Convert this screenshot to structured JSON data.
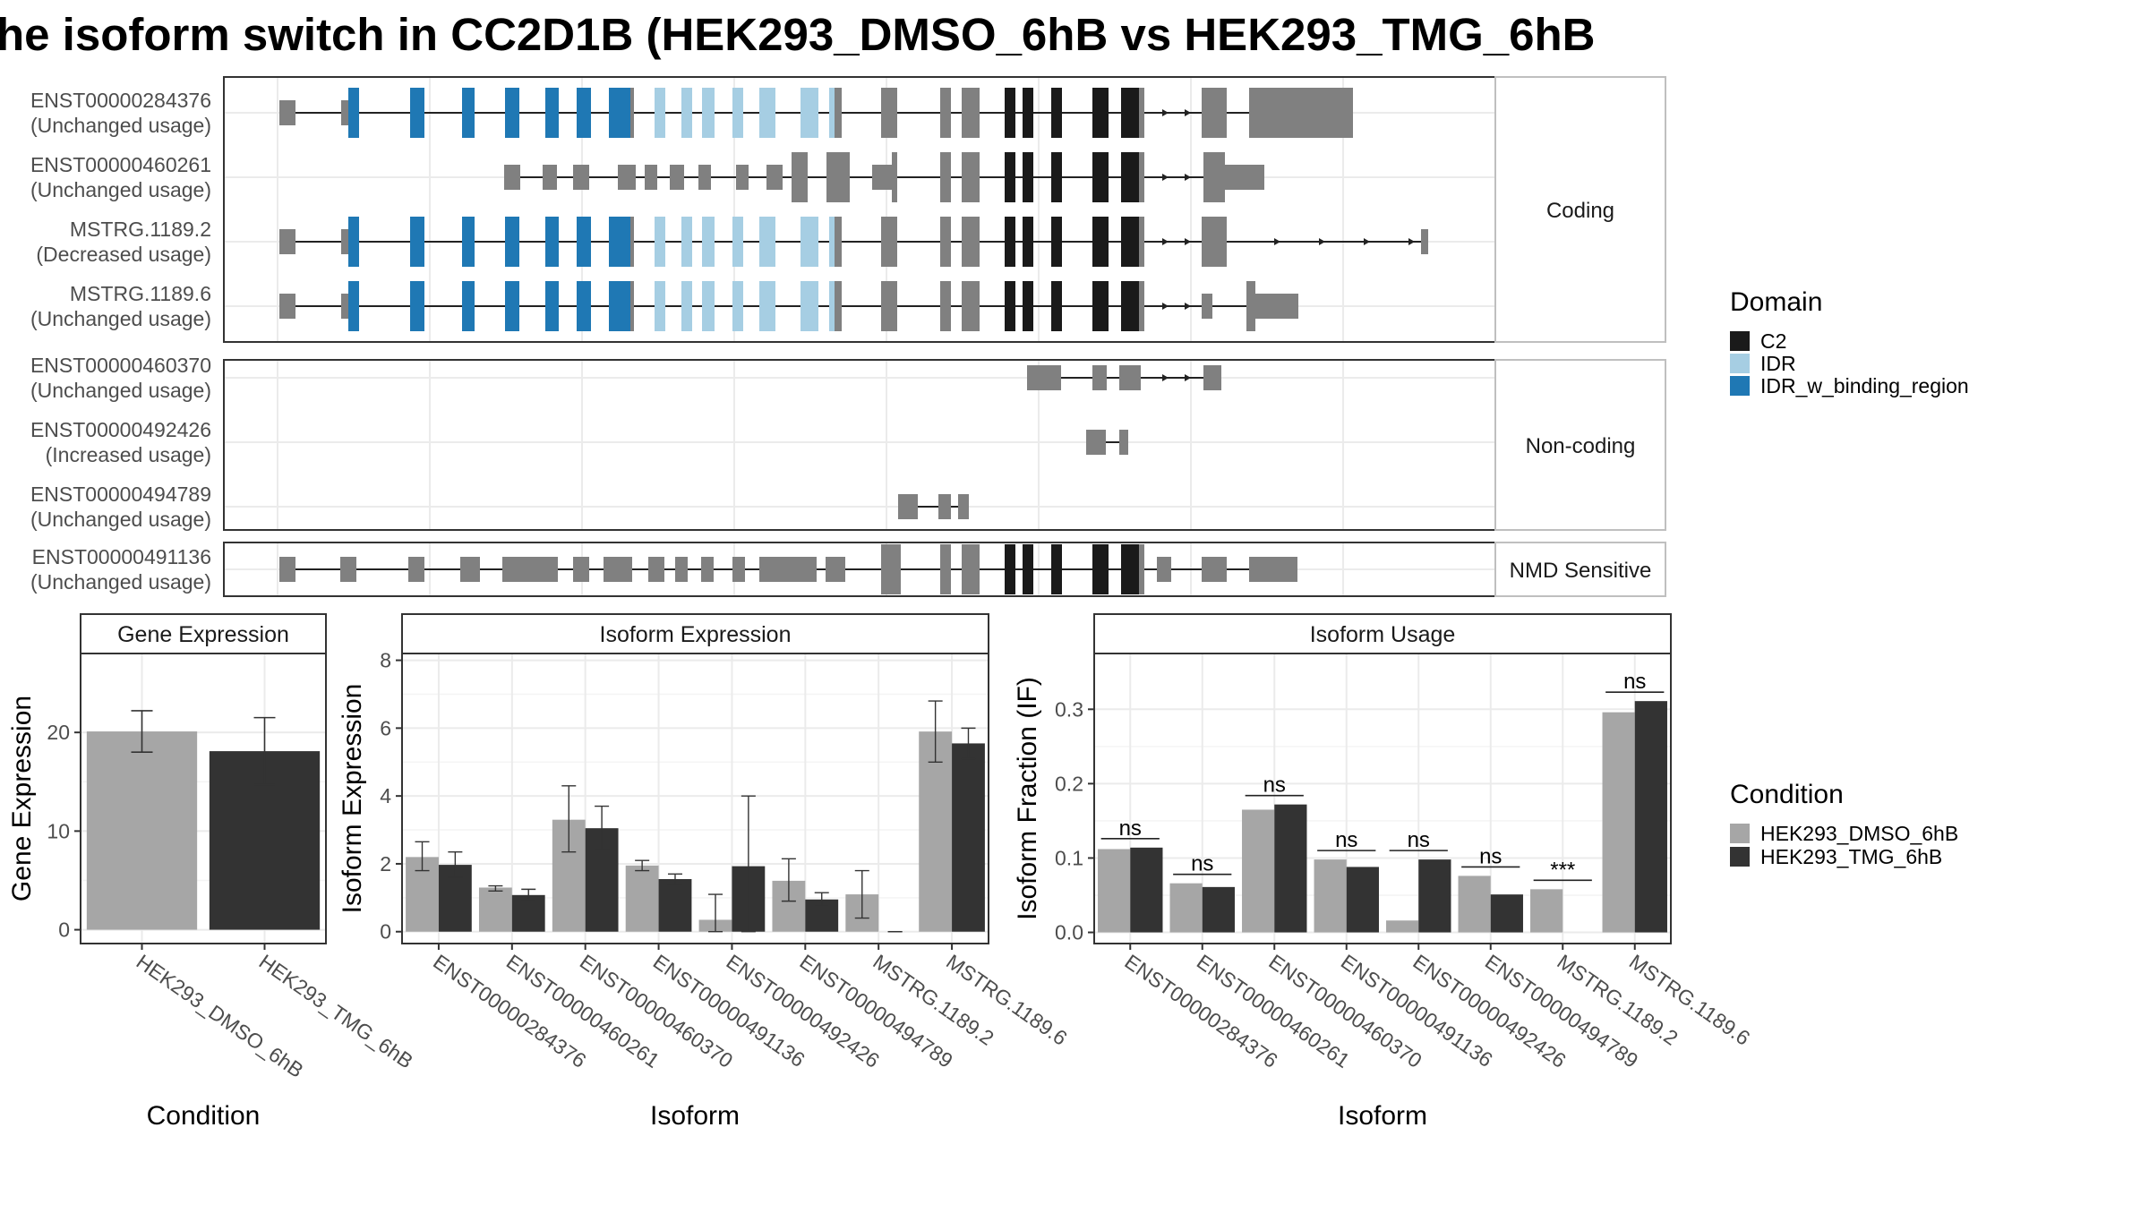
{
  "title": "he isoform switch in CC2D1B (HEK293_DMSO_6hB vs HEK293_TMG_6hB",
  "colors": {
    "exon_default": "#808080",
    "domain_c2": "#1a1a1a",
    "domain_idr": "#a6cee3",
    "domain_idr_binding": "#1f78b4",
    "condition_a": "#a6a6a6",
    "condition_b": "#333333",
    "grid": "#ebebeb",
    "panel_border": "#333333",
    "strip_border": "#bfbfbf"
  },
  "facets": [
    {
      "label": "Coding",
      "transcripts": [
        {
          "id": "ENST00000284376",
          "usage": "(Unchanged usage)"
        },
        {
          "id": "ENST00000460261",
          "usage": "(Unchanged usage)"
        },
        {
          "id": "MSTRG.1189.2",
          "usage": "(Decreased usage)"
        },
        {
          "id": "MSTRG.1189.6",
          "usage": "(Unchanged usage)"
        }
      ]
    },
    {
      "label": "Non-coding",
      "transcripts": [
        {
          "id": "ENST00000460370",
          "usage": "(Unchanged usage)"
        },
        {
          "id": "ENST00000492426",
          "usage": "(Increased usage)"
        },
        {
          "id": "ENST00000494789",
          "usage": "(Unchanged usage)"
        }
      ]
    },
    {
      "label": "NMD Sensitive",
      "transcripts": [
        {
          "id": "ENST00000491136",
          "usage": "(Unchanged usage)"
        }
      ]
    }
  ],
  "domain_legend": {
    "title": "Domain",
    "items": [
      {
        "label": "C2",
        "color": "#1a1a1a"
      },
      {
        "label": "IDR",
        "color": "#a6cee3"
      },
      {
        "label": "IDR_w_binding_region",
        "color": "#1f78b4"
      }
    ]
  },
  "condition_legend": {
    "title": "Condition",
    "items": [
      {
        "label": "HEK293_DMSO_6hB",
        "color": "#a6a6a6"
      },
      {
        "label": "HEK293_TMG_6hB",
        "color": "#333333"
      }
    ]
  },
  "chart_data": [
    {
      "type": "bar",
      "title": "Gene Expression",
      "xlabel": "Condition",
      "ylabel": "Gene Expression",
      "categories": [
        "HEK293_DMSO_6hB",
        "HEK293_TMG_6hB"
      ],
      "values": [
        20.1,
        18.1
      ],
      "err_low": [
        18.0,
        14.7
      ],
      "err_high": [
        22.2,
        21.5
      ],
      "ylim": [
        -1.4,
        28
      ],
      "yticks": [
        0,
        10,
        20
      ],
      "grid": true
    },
    {
      "type": "bar",
      "title": "Isoform Expression",
      "xlabel": "Isoform",
      "ylabel": "Isoform Expression",
      "categories": [
        "ENST00000284376",
        "ENST00000460261",
        "ENST00000460370",
        "ENST00000491136",
        "ENST00000492426",
        "ENST00000494789",
        "MSTRG.1189.2",
        "MSTRG.1189.6"
      ],
      "series": [
        {
          "name": "HEK293_DMSO_6hB",
          "values": [
            2.2,
            1.3,
            3.3,
            1.95,
            0.35,
            1.5,
            1.1,
            5.9
          ],
          "err_low": [
            1.8,
            1.2,
            2.35,
            1.8,
            0,
            0.9,
            0.4,
            5.0
          ],
          "err_high": [
            2.65,
            1.35,
            4.3,
            2.1,
            1.1,
            2.15,
            1.8,
            6.8
          ]
        },
        {
          "name": "HEK293_TMG_6hB",
          "values": [
            1.97,
            1.08,
            3.05,
            1.55,
            1.93,
            0.95,
            0.0,
            5.55
          ],
          "err_low": [
            1.6,
            0.95,
            2.4,
            1.4,
            0,
            0.75,
            0,
            5.1
          ],
          "err_high": [
            2.35,
            1.25,
            3.7,
            1.7,
            4.0,
            1.15,
            0,
            6.0
          ]
        }
      ],
      "ylim": [
        -0.35,
        8.2
      ],
      "yticks": [
        0,
        2,
        4,
        6,
        8
      ],
      "grid": true
    },
    {
      "type": "bar",
      "title": "Isoform Usage",
      "xlabel": "Isoform",
      "ylabel": "Isoform Fraction (IF)",
      "categories": [
        "ENST00000284376",
        "ENST00000460261",
        "ENST00000460370",
        "ENST00000491136",
        "ENST00000492426",
        "ENST00000494789",
        "MSTRG.1189.2",
        "MSTRG.1189.6"
      ],
      "series": [
        {
          "name": "HEK293_DMSO_6hB",
          "values": [
            0.112,
            0.066,
            0.165,
            0.098,
            0.016,
            0.076,
            0.058,
            0.296
          ]
        },
        {
          "name": "HEK293_TMG_6hB",
          "values": [
            0.114,
            0.061,
            0.172,
            0.088,
            0.098,
            0.051,
            0.0,
            0.311
          ]
        }
      ],
      "significance": [
        "ns",
        "ns",
        "ns",
        "ns",
        "ns",
        "ns",
        "***",
        "ns"
      ],
      "ylim": [
        -0.015,
        0.375
      ],
      "yticks": [
        0.0,
        0.1,
        0.2,
        0.3
      ],
      "ytick_labels": [
        "0.0",
        "0.1",
        "0.2",
        "0.3"
      ],
      "grid": true
    }
  ]
}
